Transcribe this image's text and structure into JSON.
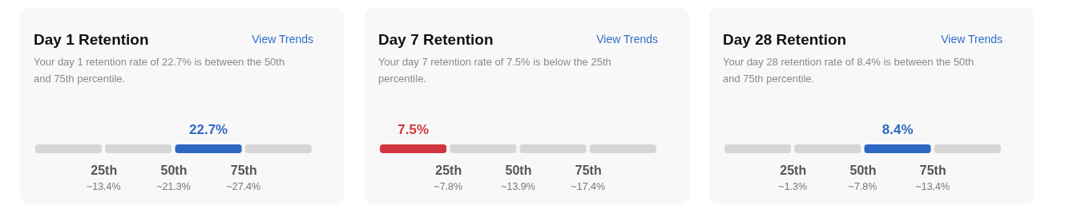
{
  "chart_data": [
    {
      "type": "bar",
      "orientation": "horizontal",
      "stacked": true,
      "title": "Day 1 Retention",
      "subtitle": "Your day 1 retention rate of 22.7% is between the 50th and 75th percentile.",
      "categories": [
        null
      ],
      "xlim": [
        0,
        100
      ],
      "xticks": [
        {
          "value": 25,
          "label": "25th"
        },
        {
          "value": 50,
          "label": "50th"
        },
        {
          "value": 75,
          "label": "75th"
        }
      ],
      "series": [
        {
          "color": "#d6d6d6",
          "values": [
            25
          ]
        },
        {
          "color": "#d6d6d6",
          "values": [
            25
          ]
        },
        {
          "name": "22.7%",
          "color": "#2f68c4",
          "values": [
            25
          ]
        },
        {
          "color": "#d6d6d6",
          "values": [
            25
          ]
        }
      ],
      "annotations": [
        "View Trends",
        "~13.4%",
        "~21.3%",
        "~27.4%"
      ]
    },
    {
      "type": "bar",
      "orientation": "horizontal",
      "stacked": true,
      "title": "Day 7 Retention",
      "subtitle": "Your day 7 retention rate of 7.5% is below the 25th percentile.",
      "categories": [
        null
      ],
      "xlim": [
        0,
        100
      ],
      "xticks": [
        {
          "value": 25,
          "label": "25th"
        },
        {
          "value": 50,
          "label": "50th"
        },
        {
          "value": 75,
          "label": "75th"
        }
      ],
      "series": [
        {
          "name": "7.5%",
          "color": "#d2363c",
          "values": [
            25
          ]
        },
        {
          "color": "#d6d6d6",
          "values": [
            25
          ]
        },
        {
          "color": "#d6d6d6",
          "values": [
            25
          ]
        },
        {
          "color": "#d6d6d6",
          "values": [
            25
          ]
        }
      ],
      "annotations": [
        "View Trends",
        "~7.8%",
        "~13.9%",
        "~17.4%"
      ]
    },
    {
      "type": "bar",
      "orientation": "horizontal",
      "stacked": true,
      "title": "Day 28 Retention",
      "subtitle": "Your day 28 retention rate of 8.4% is between the 50th and 75th percentile.",
      "categories": [
        null
      ],
      "xlim": [
        0,
        100
      ],
      "xticks": [
        {
          "value": 25,
          "label": "25th"
        },
        {
          "value": 50,
          "label": "50th"
        },
        {
          "value": 75,
          "label": "75th"
        }
      ],
      "series": [
        {
          "color": "#d6d6d6",
          "values": [
            25
          ]
        },
        {
          "color": "#d6d6d6",
          "values": [
            25
          ]
        },
        {
          "name": "8.4%",
          "color": "#2f68c4",
          "values": [
            25
          ]
        },
        {
          "color": "#d6d6d6",
          "values": [
            25
          ]
        }
      ],
      "annotations": [
        "View Trends",
        "~1.3%",
        "~7.8%",
        "~13.4%"
      ]
    }
  ]
}
